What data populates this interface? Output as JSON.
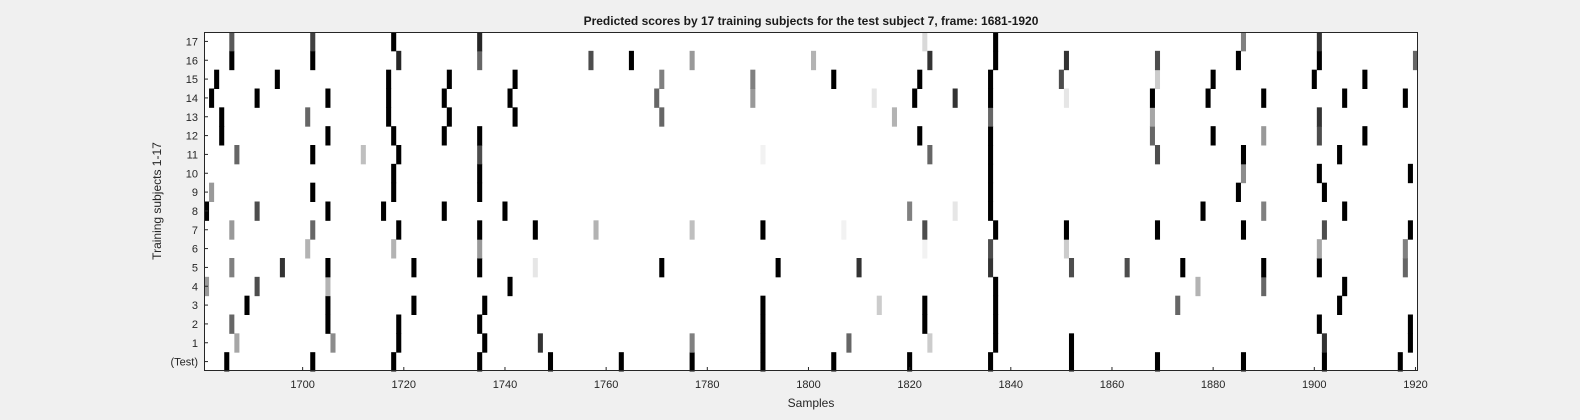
{
  "chart_data": {
    "type": "heatmap",
    "title": "Predicted scores by 17 training subjects for the test subject 7, frame: 1681-1920",
    "xlabel": "Samples",
    "ylabel": "Training subjects 1-17",
    "xlim": [
      1681,
      1920
    ],
    "x_ticks": [
      1700,
      1720,
      1740,
      1760,
      1780,
      1800,
      1820,
      1840,
      1860,
      1880,
      1900,
      1920
    ],
    "y_tick_labels": [
      "(Test)",
      "1",
      "2",
      "3",
      "4",
      "5",
      "6",
      "7",
      "8",
      "9",
      "10",
      "11",
      "12",
      "13",
      "14",
      "15",
      "16",
      "17"
    ],
    "colormap": "gray-inverted",
    "value_range": [
      0,
      1
    ],
    "rows": [
      {
        "label": "(Test)",
        "marks": [
          [
            1685,
            1
          ],
          [
            1702,
            1
          ],
          [
            1718,
            1
          ],
          [
            1735,
            1
          ],
          [
            1749,
            1
          ],
          [
            1763,
            1
          ],
          [
            1777,
            1
          ],
          [
            1791,
            1
          ],
          [
            1805,
            1
          ],
          [
            1820,
            1
          ],
          [
            1836,
            1
          ],
          [
            1852,
            1
          ],
          [
            1869,
            1
          ],
          [
            1886,
            1
          ],
          [
            1902,
            1
          ],
          [
            1917,
            1
          ]
        ]
      },
      {
        "label": "1",
        "marks": [
          [
            1687,
            0.35
          ],
          [
            1706,
            0.45
          ],
          [
            1719,
            1
          ],
          [
            1736,
            1
          ],
          [
            1747,
            0.8
          ],
          [
            1777,
            0.5
          ],
          [
            1791,
            1
          ],
          [
            1808,
            0.6
          ],
          [
            1824,
            0.2
          ],
          [
            1837,
            1
          ],
          [
            1852,
            1
          ],
          [
            1902,
            0.8
          ],
          [
            1919,
            1
          ]
        ]
      },
      {
        "label": "2",
        "marks": [
          [
            1686,
            0.6
          ],
          [
            1705,
            1
          ],
          [
            1719,
            1
          ],
          [
            1735,
            1
          ],
          [
            1791,
            1
          ],
          [
            1823,
            1
          ],
          [
            1837,
            1
          ],
          [
            1901,
            1
          ],
          [
            1919,
            1
          ]
        ]
      },
      {
        "label": "3",
        "marks": [
          [
            1689,
            1
          ],
          [
            1705,
            1
          ],
          [
            1722,
            1
          ],
          [
            1736,
            1
          ],
          [
            1791,
            1
          ],
          [
            1814,
            0.2
          ],
          [
            1823,
            1
          ],
          [
            1837,
            1
          ],
          [
            1873,
            0.6
          ],
          [
            1905,
            1
          ]
        ]
      },
      {
        "label": "4",
        "marks": [
          [
            1681,
            0.4
          ],
          [
            1691,
            0.7
          ],
          [
            1705,
            0.3
          ],
          [
            1741,
            1
          ],
          [
            1837,
            1
          ],
          [
            1877,
            0.3
          ],
          [
            1890,
            0.6
          ],
          [
            1906,
            1
          ]
        ]
      },
      {
        "label": "5",
        "marks": [
          [
            1686,
            0.5
          ],
          [
            1696,
            0.8
          ],
          [
            1705,
            1
          ],
          [
            1722,
            1
          ],
          [
            1735,
            1
          ],
          [
            1746,
            0.1
          ],
          [
            1771,
            1
          ],
          [
            1794,
            1
          ],
          [
            1810,
            0.8
          ],
          [
            1836,
            0.8
          ],
          [
            1852,
            0.7
          ],
          [
            1863,
            0.7
          ],
          [
            1874,
            1
          ],
          [
            1890,
            1
          ],
          [
            1901,
            1
          ],
          [
            1918,
            0.6
          ]
        ]
      },
      {
        "label": "6",
        "marks": [
          [
            1701,
            0.3
          ],
          [
            1718,
            0.3
          ],
          [
            1735,
            0.4
          ],
          [
            1823,
            0.05
          ],
          [
            1836,
            0.7
          ],
          [
            1851,
            0.2
          ],
          [
            1901,
            0.35
          ],
          [
            1918,
            0.5
          ]
        ]
      },
      {
        "label": "7",
        "marks": [
          [
            1686,
            0.4
          ],
          [
            1702,
            0.6
          ],
          [
            1719,
            1
          ],
          [
            1735,
            1
          ],
          [
            1746,
            1
          ],
          [
            1758,
            0.3
          ],
          [
            1777,
            0.25
          ],
          [
            1791,
            1
          ],
          [
            1807,
            0.05
          ],
          [
            1823,
            0.7
          ],
          [
            1837,
            1
          ],
          [
            1851,
            1
          ],
          [
            1869,
            1
          ],
          [
            1886,
            1
          ],
          [
            1902,
            0.7
          ],
          [
            1919,
            1
          ]
        ]
      },
      {
        "label": "8",
        "marks": [
          [
            1681,
            1
          ],
          [
            1691,
            0.7
          ],
          [
            1705,
            1
          ],
          [
            1716,
            1
          ],
          [
            1728,
            1
          ],
          [
            1740,
            1
          ],
          [
            1820,
            0.5
          ],
          [
            1829,
            0.1
          ],
          [
            1836,
            1
          ],
          [
            1878,
            1
          ],
          [
            1890,
            0.5
          ],
          [
            1906,
            1
          ]
        ]
      },
      {
        "label": "9",
        "marks": [
          [
            1682,
            0.4
          ],
          [
            1702,
            1
          ],
          [
            1718,
            1
          ],
          [
            1735,
            1
          ],
          [
            1836,
            1
          ],
          [
            1885,
            1
          ],
          [
            1902,
            1
          ]
        ]
      },
      {
        "label": "10",
        "marks": [
          [
            1718,
            1
          ],
          [
            1735,
            1
          ],
          [
            1836,
            1
          ],
          [
            1886,
            0.45
          ],
          [
            1901,
            1
          ],
          [
            1919,
            1
          ]
        ]
      },
      {
        "label": "11",
        "marks": [
          [
            1687,
            0.6
          ],
          [
            1702,
            1
          ],
          [
            1712,
            0.25
          ],
          [
            1719,
            1
          ],
          [
            1735,
            0.7
          ],
          [
            1791,
            0.05
          ],
          [
            1824,
            0.6
          ],
          [
            1836,
            1
          ],
          [
            1869,
            0.7
          ],
          [
            1886,
            1
          ],
          [
            1905,
            1
          ]
        ]
      },
      {
        "label": "12",
        "marks": [
          [
            1684,
            1
          ],
          [
            1705,
            1
          ],
          [
            1718,
            1
          ],
          [
            1728,
            1
          ],
          [
            1735,
            1
          ],
          [
            1822,
            1
          ],
          [
            1836,
            1
          ],
          [
            1868,
            0.6
          ],
          [
            1880,
            1
          ],
          [
            1890,
            0.4
          ],
          [
            1901,
            0.7
          ],
          [
            1910,
            1
          ]
        ]
      },
      {
        "label": "13",
        "marks": [
          [
            1684,
            1
          ],
          [
            1701,
            0.6
          ],
          [
            1717,
            1
          ],
          [
            1729,
            1
          ],
          [
            1742,
            1
          ],
          [
            1771,
            0.6
          ],
          [
            1817,
            0.3
          ],
          [
            1836,
            0.6
          ],
          [
            1868,
            0.35
          ],
          [
            1901,
            0.8
          ]
        ]
      },
      {
        "label": "14",
        "marks": [
          [
            1682,
            1
          ],
          [
            1691,
            1
          ],
          [
            1705,
            1
          ],
          [
            1717,
            1
          ],
          [
            1728,
            1
          ],
          [
            1741,
            1
          ],
          [
            1770,
            0.6
          ],
          [
            1789,
            0.4
          ],
          [
            1813,
            0.1
          ],
          [
            1821,
            1
          ],
          [
            1829,
            0.8
          ],
          [
            1836,
            1
          ],
          [
            1851,
            0.1
          ],
          [
            1868,
            1
          ],
          [
            1879,
            1
          ],
          [
            1890,
            1
          ],
          [
            1906,
            1
          ],
          [
            1918,
            1
          ]
        ]
      },
      {
        "label": "15",
        "marks": [
          [
            1683,
            1
          ],
          [
            1695,
            1
          ],
          [
            1717,
            1
          ],
          [
            1729,
            1
          ],
          [
            1742,
            1
          ],
          [
            1771,
            0.5
          ],
          [
            1789,
            0.5
          ],
          [
            1805,
            1
          ],
          [
            1822,
            1
          ],
          [
            1836,
            1
          ],
          [
            1850,
            0.7
          ],
          [
            1869,
            0.2
          ],
          [
            1880,
            1
          ],
          [
            1900,
            1
          ],
          [
            1910,
            1
          ]
        ]
      },
      {
        "label": "16",
        "marks": [
          [
            1686,
            1
          ],
          [
            1702,
            1
          ],
          [
            1719,
            0.85
          ],
          [
            1735,
            0.6
          ],
          [
            1757,
            0.7
          ],
          [
            1765,
            1
          ],
          [
            1777,
            0.4
          ],
          [
            1801,
            0.3
          ],
          [
            1824,
            0.8
          ],
          [
            1837,
            1
          ],
          [
            1851,
            0.8
          ],
          [
            1869,
            0.7
          ],
          [
            1885,
            1
          ],
          [
            1901,
            1
          ],
          [
            1920,
            0.6
          ]
        ]
      },
      {
        "label": "17",
        "marks": [
          [
            1686,
            0.65
          ],
          [
            1702,
            0.75
          ],
          [
            1718,
            1
          ],
          [
            1735,
            0.85
          ],
          [
            1823,
            0.15
          ],
          [
            1837,
            1
          ],
          [
            1886,
            0.5
          ],
          [
            1901,
            0.8
          ]
        ]
      }
    ]
  }
}
